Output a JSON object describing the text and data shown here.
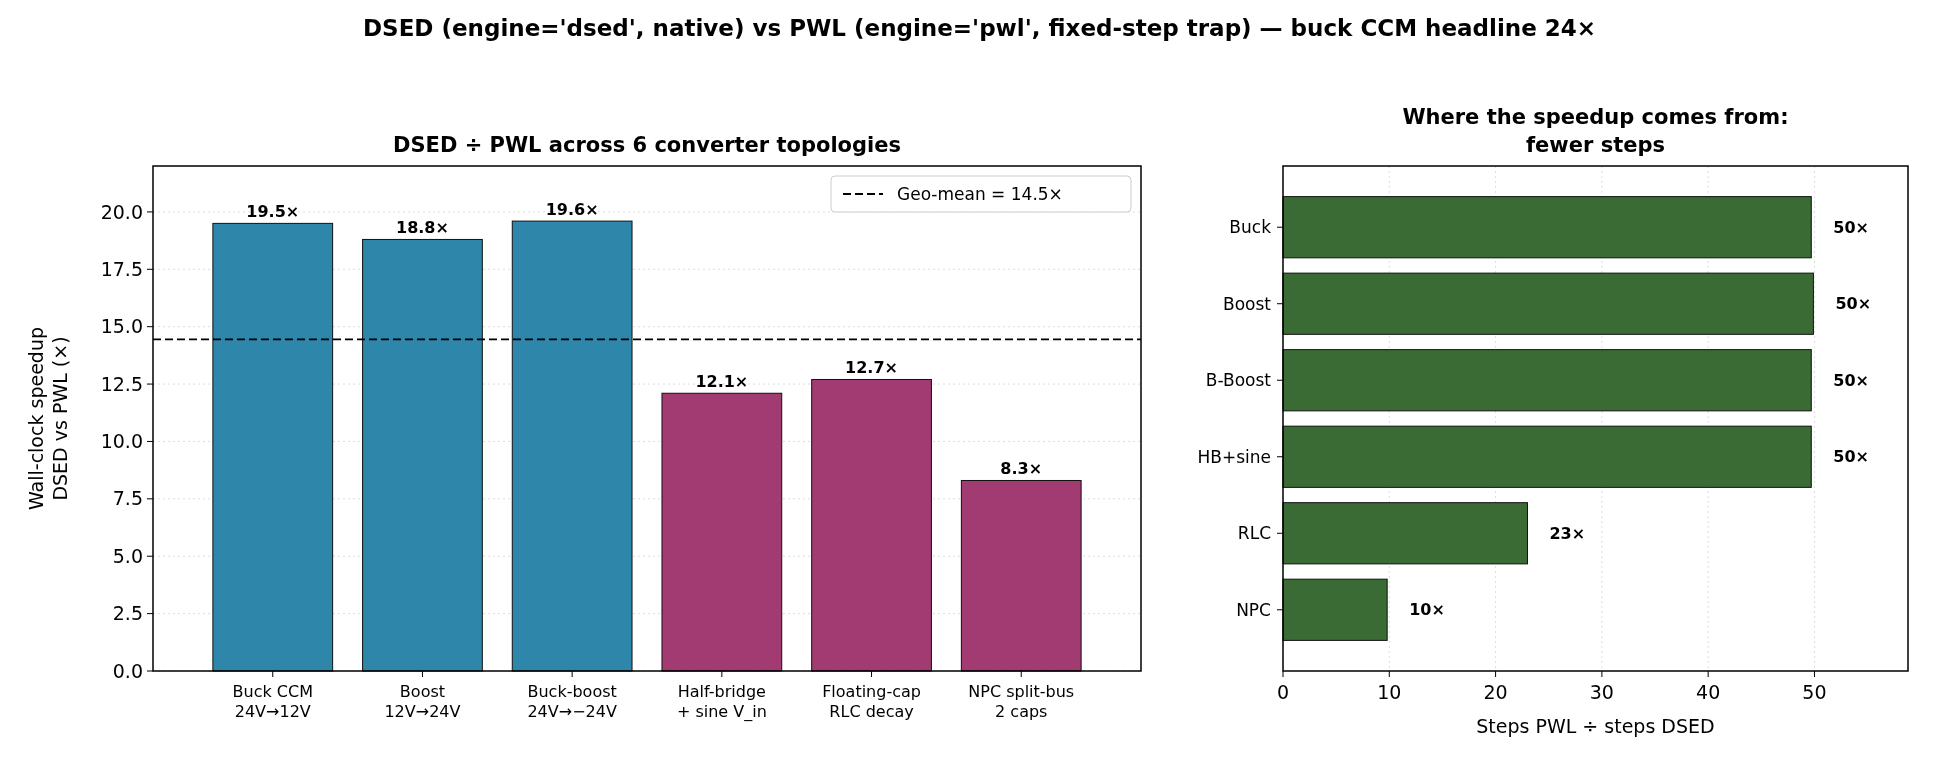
{
  "chart_data": [
    {
      "type": "bar",
      "title": "DSED ÷ PWL across 6 converter topologies",
      "ylabel": "Wall-clock speedup\nDSED vs PWL (×)",
      "annotations": [
        "DSED (engine='dsed', native) vs PWL (engine='pwl', fixed-step trap) — buck CCM headline 24×"
      ],
      "categories": [
        "Buck CCM\n24V→12V",
        "Boost\n12V→24V",
        "Buck-boost\n24V→−24V",
        "Half-bridge\n+ sine V_in",
        "Floating-cap\nRLC decay",
        "NPC split-bus\n2 caps"
      ],
      "values": [
        19.5,
        18.8,
        19.6,
        12.1,
        12.7,
        8.3
      ],
      "colors": [
        "#2e86ab",
        "#2e86ab",
        "#2e86ab",
        "#a23b72",
        "#a23b72",
        "#a23b72"
      ],
      "value_labels": [
        "19.5×",
        "18.8×",
        "19.6×",
        "12.1×",
        "12.7×",
        "8.3×"
      ],
      "ylim": [
        0,
        22
      ],
      "yticks": [
        {
          "value": 0,
          "label": "0.0"
        },
        {
          "value": 2.5,
          "label": "2.5"
        },
        {
          "value": 5,
          "label": "5.0"
        },
        {
          "value": 7.5,
          "label": "7.5"
        },
        {
          "value": 10,
          "label": "10.0"
        },
        {
          "value": 12.5,
          "label": "12.5"
        },
        {
          "value": 15,
          "label": "15.0"
        },
        {
          "value": 17.5,
          "label": "17.5"
        },
        {
          "value": 20,
          "label": "20.0"
        }
      ],
      "grid": "y",
      "legend": "top right",
      "ref_lines": [
        {
          "axis": "y",
          "value": 14.45,
          "label": "Geo-mean = 14.5×",
          "color": "#000000",
          "line_style": "dashed"
        }
      ]
    },
    {
      "type": "bar",
      "orientation": "horizontal",
      "title": "Where the speedup comes from:\nfewer steps",
      "xlabel": "Steps PWL ÷ steps DSED",
      "categories": [
        "Buck",
        "Boost",
        "B-Boost",
        "HB+sine",
        "RLC",
        "NPC"
      ],
      "values": [
        49.7,
        49.9,
        49.7,
        49.7,
        23.0,
        9.8
      ],
      "colors": [
        "#3b6b35",
        "#3b6b35",
        "#3b6b35",
        "#3b6b35",
        "#3b6b35",
        "#3b6b35"
      ],
      "value_labels": [
        "50×",
        "50×",
        "50×",
        "50×",
        "23×",
        "10×"
      ],
      "xlim": [
        0,
        58.8
      ],
      "xticks": [
        0,
        10,
        20,
        30,
        40,
        50
      ],
      "grid": "x"
    }
  ]
}
